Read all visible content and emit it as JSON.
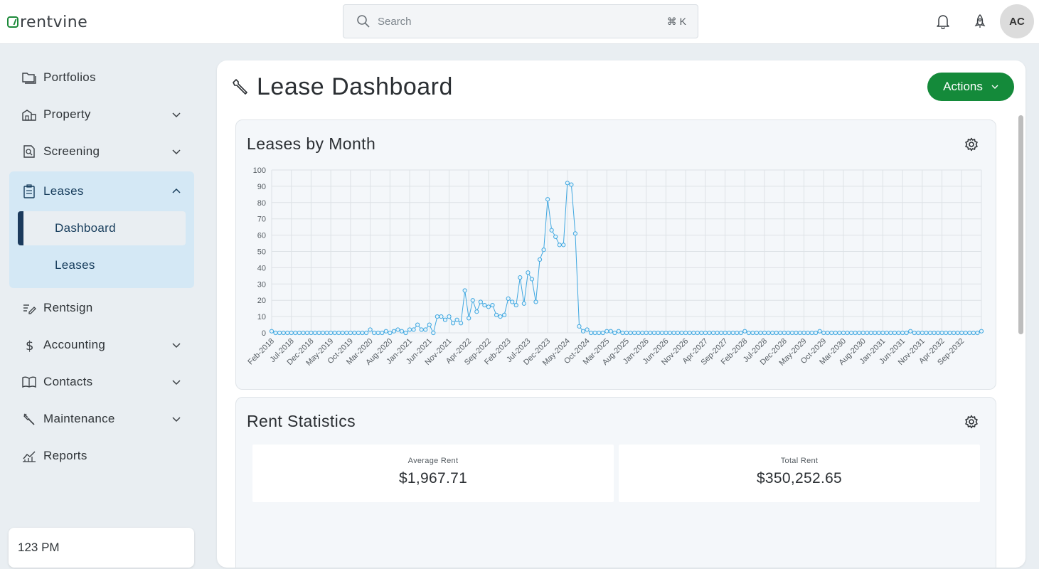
{
  "brand": {
    "name": "rentvine",
    "accent": "#148a3a"
  },
  "search": {
    "placeholder": "Search",
    "shortcut": "⌘ K"
  },
  "header": {
    "avatar_initials": "AC",
    "icons": [
      "bell-icon",
      "rocket-icon"
    ]
  },
  "sidebar": {
    "items": [
      {
        "label": "Portfolios",
        "icon": "folders-icon",
        "chevron": false
      },
      {
        "label": "Property",
        "icon": "buildings-icon",
        "chevron": true
      },
      {
        "label": "Screening",
        "icon": "screening-icon",
        "chevron": true
      },
      {
        "label": "Leases",
        "icon": "clipboard-icon",
        "chevron": true,
        "expanded": true
      },
      {
        "label": "Rentsign",
        "icon": "sign-icon",
        "chevron": false
      },
      {
        "label": "Accounting",
        "icon": "dollar-icon",
        "chevron": true
      },
      {
        "label": "Contacts",
        "icon": "book-icon",
        "chevron": true
      },
      {
        "label": "Maintenance",
        "icon": "tools-icon",
        "chevron": true
      },
      {
        "label": "Reports",
        "icon": "chart-icon",
        "chevron": false
      }
    ],
    "sub_items": [
      {
        "label": "Dashboard",
        "active": true
      },
      {
        "label": "Leases",
        "active": false
      }
    ],
    "footer_label": "123 PM"
  },
  "page": {
    "title": "Lease Dashboard",
    "actions_label": "Actions"
  },
  "leases_panel": {
    "title": "Leases by Month"
  },
  "rent_panel": {
    "title": "Rent Statistics",
    "stats": [
      {
        "label": "Average Rent",
        "value": "$1,967.71"
      },
      {
        "label": "Total Rent",
        "value": "$350,252.65"
      }
    ]
  },
  "chart_data": {
    "type": "line",
    "title": "Leases by Month",
    "xlabel": "",
    "ylabel": "",
    "ylim": [
      0,
      100
    ],
    "yticks": [
      0,
      10,
      20,
      30,
      40,
      50,
      60,
      70,
      80,
      90,
      100
    ],
    "grid": true,
    "x_start": "Feb-2018",
    "x_tick_labels": [
      "Feb-2018",
      "Jul-2018",
      "Dec-2018",
      "May-2019",
      "Oct-2019",
      "Mar-2020",
      "Aug-2020",
      "Jan-2021",
      "Jun-2021",
      "Nov-2021",
      "Apr-2022",
      "Sep-2022",
      "Feb-2023",
      "Jul-2023",
      "Dec-2023",
      "May-2024",
      "Oct-2024",
      "Mar-2025",
      "Aug-2025",
      "Jan-2026",
      "Jun-2026",
      "Nov-2026",
      "Apr-2027",
      "Sep-2027",
      "Feb-2028",
      "Jul-2028",
      "Dec-2028",
      "May-2029",
      "Oct-2029",
      "Mar-2030",
      "Aug-2030",
      "Jan-2031",
      "Jun-2031",
      "Nov-2031",
      "Apr-2032",
      "Sep-2032"
    ],
    "series": [
      {
        "color": "#3fa7e0",
        "values": [
          1,
          0,
          0,
          0,
          0,
          0,
          0,
          0,
          0,
          0,
          0,
          0,
          0,
          0,
          0,
          0,
          0,
          0,
          0,
          0,
          0,
          0,
          0,
          0,
          0,
          2,
          0,
          0,
          0,
          1,
          0,
          1,
          2,
          1,
          0,
          2,
          2,
          5,
          2,
          2,
          5,
          0,
          10,
          10,
          8,
          10,
          6,
          8,
          6,
          26,
          9,
          20,
          13,
          19,
          17,
          16,
          17,
          11,
          10,
          11,
          21,
          19,
          17,
          34,
          18,
          37,
          33,
          19,
          45,
          51,
          82,
          63,
          59,
          54,
          54,
          92,
          91,
          61,
          4,
          1,
          2,
          0,
          0,
          0,
          0,
          1,
          1,
          0,
          1,
          0,
          0,
          0,
          0,
          0,
          0,
          0,
          0,
          0,
          0,
          0,
          0,
          0,
          0,
          0,
          0,
          0,
          0,
          0,
          0,
          0,
          0,
          0,
          0,
          0,
          0,
          0,
          0,
          0,
          0,
          0,
          1,
          0,
          0,
          0,
          0,
          0,
          0,
          0,
          0,
          0,
          0,
          0,
          0,
          0,
          0,
          0,
          0,
          0,
          0,
          1,
          0,
          0,
          0,
          0,
          0,
          0,
          0,
          0,
          0,
          0,
          0,
          0,
          0,
          0,
          0,
          0,
          0,
          0,
          0,
          0,
          0,
          0,
          1,
          0,
          0,
          0,
          0,
          0,
          0,
          0,
          0,
          0,
          0,
          0,
          0,
          0,
          0,
          0,
          0,
          0,
          1
        ]
      }
    ]
  }
}
